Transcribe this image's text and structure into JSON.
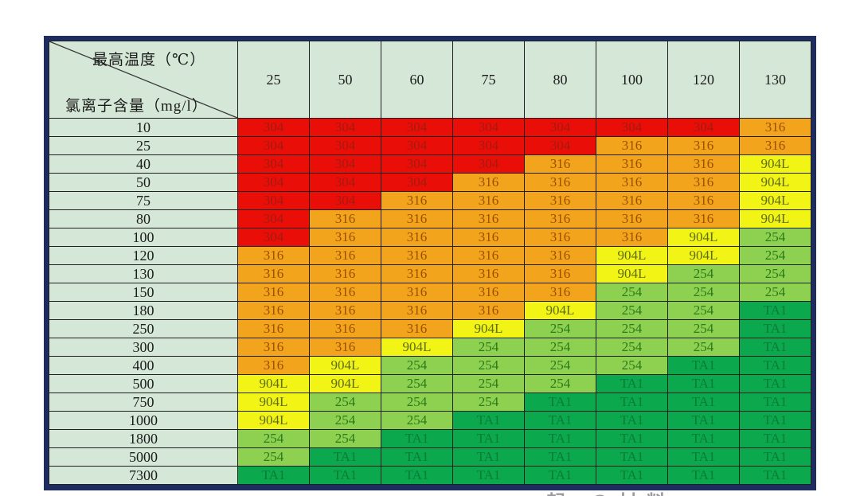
{
  "chart_data": {
    "type": "heatmap",
    "title": "",
    "corner_labels": {
      "top": "最高温度（℃）",
      "bottom": "氯离子含量（mg/l）"
    },
    "x_axis_label": "最高温度（℃）",
    "y_axis_label": "氯离子含量（mg/l）",
    "columns": [
      "25",
      "50",
      "60",
      "75",
      "80",
      "100",
      "120",
      "130"
    ],
    "materials": {
      "304": {
        "bg": "#e90f08",
        "fg": "#a31a10"
      },
      "316": {
        "bg": "#f2a41c",
        "fg": "#9a4f00"
      },
      "904L": {
        "bg": "#f1f414",
        "fg": "#5f6d1a"
      },
      "254": {
        "bg": "#8ed04f",
        "fg": "#2b7a1b"
      },
      "TA1": {
        "bg": "#0ca84d",
        "fg": "#0a7c38"
      }
    },
    "rows": [
      {
        "label": "10",
        "values": [
          "304",
          "304",
          "304",
          "304",
          "304",
          "304",
          "304",
          "316"
        ]
      },
      {
        "label": "25",
        "values": [
          "304",
          "304",
          "304",
          "304",
          "304",
          "316",
          "316",
          "316"
        ]
      },
      {
        "label": "40",
        "values": [
          "304",
          "304",
          "304",
          "304",
          "316",
          "316",
          "316",
          "904L"
        ]
      },
      {
        "label": "50",
        "values": [
          "304",
          "304",
          "304",
          "316",
          "316",
          "316",
          "316",
          "904L"
        ]
      },
      {
        "label": "75",
        "values": [
          "304",
          "304",
          "316",
          "316",
          "316",
          "316",
          "316",
          "904L"
        ]
      },
      {
        "label": "80",
        "values": [
          "304",
          "316",
          "316",
          "316",
          "316",
          "316",
          "316",
          "904L"
        ]
      },
      {
        "label": "100",
        "values": [
          "304",
          "316",
          "316",
          "316",
          "316",
          "316",
          "904L",
          "254"
        ]
      },
      {
        "label": "120",
        "values": [
          "316",
          "316",
          "316",
          "316",
          "316",
          "904L",
          "904L",
          "254"
        ]
      },
      {
        "label": "130",
        "values": [
          "316",
          "316",
          "316",
          "316",
          "316",
          "904L",
          "254",
          "254"
        ]
      },
      {
        "label": "150",
        "values": [
          "316",
          "316",
          "316",
          "316",
          "316",
          "254",
          "254",
          "254"
        ]
      },
      {
        "label": "180",
        "values": [
          "316",
          "316",
          "316",
          "316",
          "904L",
          "254",
          "254",
          "TA1"
        ]
      },
      {
        "label": "250",
        "values": [
          "316",
          "316",
          "316",
          "904L",
          "254",
          "254",
          "254",
          "TA1"
        ]
      },
      {
        "label": "300",
        "values": [
          "316",
          "316",
          "904L",
          "254",
          "254",
          "254",
          "254",
          "TA1"
        ]
      },
      {
        "label": "400",
        "values": [
          "316",
          "904L",
          "254",
          "254",
          "254",
          "254",
          "TA1",
          "TA1"
        ]
      },
      {
        "label": "500",
        "values": [
          "904L",
          "904L",
          "254",
          "254",
          "254",
          "TA1",
          "TA1",
          "TA1"
        ]
      },
      {
        "label": "750",
        "values": [
          "904L",
          "254",
          "254",
          "254",
          "TA1",
          "TA1",
          "TA1",
          "TA1"
        ]
      },
      {
        "label": "1000",
        "values": [
          "904L",
          "254",
          "254",
          "TA1",
          "TA1",
          "TA1",
          "TA1",
          "TA1"
        ]
      },
      {
        "label": "1800",
        "values": [
          "254",
          "254",
          "TA1",
          "TA1",
          "TA1",
          "TA1",
          "TA1",
          "TA1"
        ]
      },
      {
        "label": "5000",
        "values": [
          "254",
          "TA1",
          "TA1",
          "TA1",
          "TA1",
          "TA1",
          "TA1",
          "TA1"
        ]
      },
      {
        "label": "7300",
        "values": [
          "TA1",
          "TA1",
          "TA1",
          "TA1",
          "TA1",
          "TA1",
          "TA1",
          "TA1"
        ]
      }
    ],
    "layout": {
      "grid": true,
      "frame_color": "#1d2d62",
      "header_bg": "#d5e7d6"
    }
  },
  "watermark": {
    "text": "一起 @材料"
  }
}
